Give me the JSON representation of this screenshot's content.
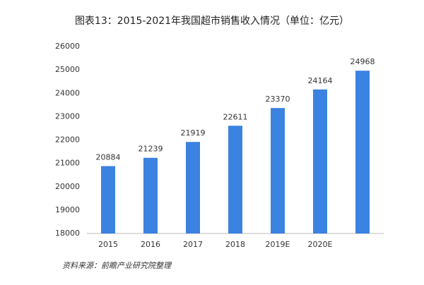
{
  "chart_data": {
    "type": "bar",
    "title": "图表13：2015-2021年我国超市销售收入情况（单位：亿元）",
    "categories": [
      "2015",
      "2016",
      "2017",
      "2018",
      "2019E",
      "2020E",
      null
    ],
    "values": [
      20884,
      21239,
      21919,
      22611,
      23370,
      24164,
      24968
    ],
    "color": "#3c82e0",
    "ylim": [
      18000,
      26000
    ],
    "yticks": [
      18000,
      19000,
      20000,
      21000,
      22000,
      23000,
      24000,
      25000,
      26000
    ],
    "grid": false,
    "source": "资料来源：前瞻产业研究院整理"
  }
}
